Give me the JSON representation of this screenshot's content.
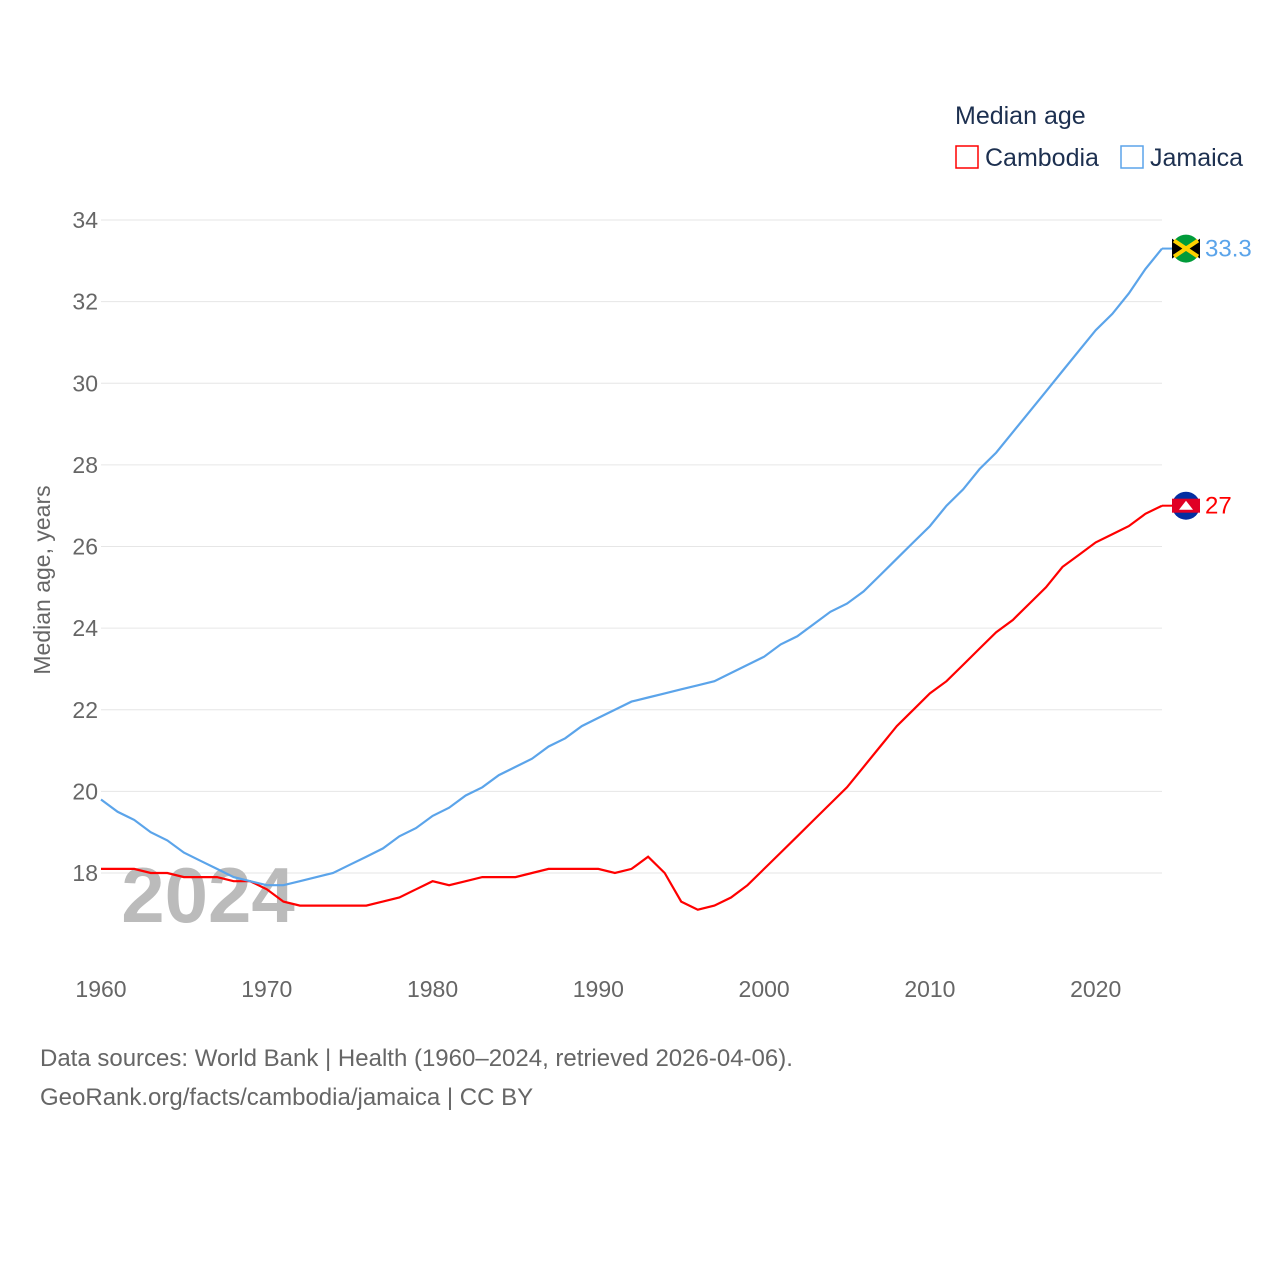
{
  "chart_data": {
    "type": "line",
    "title": "",
    "legend_title": "Median age",
    "legend_placement": "top-right",
    "ylabel": "Median age, years",
    "xlabel": "",
    "ylim": [
      16,
      34
    ],
    "xlim": [
      1960,
      2024
    ],
    "yticks": [
      18,
      20,
      22,
      24,
      26,
      28,
      30,
      32,
      34
    ],
    "xticks": [
      1960,
      1970,
      1980,
      1990,
      2000,
      2010,
      2020
    ],
    "grid": true,
    "year_overlay": "2024",
    "x": [
      1960,
      1961,
      1962,
      1963,
      1964,
      1965,
      1966,
      1967,
      1968,
      1969,
      1970,
      1971,
      1972,
      1973,
      1974,
      1975,
      1976,
      1977,
      1978,
      1979,
      1980,
      1981,
      1982,
      1983,
      1984,
      1985,
      1986,
      1987,
      1988,
      1989,
      1990,
      1991,
      1992,
      1993,
      1994,
      1995,
      1996,
      1997,
      1998,
      1999,
      2000,
      2001,
      2002,
      2003,
      2004,
      2005,
      2006,
      2007,
      2008,
      2009,
      2010,
      2011,
      2012,
      2013,
      2014,
      2015,
      2016,
      2017,
      2018,
      2019,
      2020,
      2021,
      2022,
      2023,
      2024
    ],
    "series": [
      {
        "name": "Cambodia",
        "color": "#ff0000",
        "end_label": "27",
        "values": [
          18.1,
          18.1,
          18.1,
          18.0,
          18.0,
          17.9,
          17.9,
          17.9,
          17.8,
          17.8,
          17.6,
          17.3,
          17.2,
          17.2,
          17.2,
          17.2,
          17.2,
          17.3,
          17.4,
          17.6,
          17.8,
          17.7,
          17.8,
          17.9,
          17.9,
          17.9,
          18.0,
          18.1,
          18.1,
          18.1,
          18.1,
          18.0,
          18.1,
          18.4,
          18.0,
          17.3,
          17.1,
          17.2,
          17.4,
          17.7,
          18.1,
          18.5,
          18.9,
          19.3,
          19.7,
          20.1,
          20.6,
          21.1,
          21.6,
          22.0,
          22.4,
          22.7,
          23.1,
          23.5,
          23.9,
          24.2,
          24.6,
          25.0,
          25.5,
          25.8,
          26.1,
          26.3,
          26.5,
          26.8,
          27.0
        ]
      },
      {
        "name": "Jamaica",
        "color": "#5ba4ea",
        "end_label": "33.3",
        "values": [
          19.8,
          19.5,
          19.3,
          19.0,
          18.8,
          18.5,
          18.3,
          18.1,
          17.9,
          17.8,
          17.7,
          17.7,
          17.8,
          17.9,
          18.0,
          18.2,
          18.4,
          18.6,
          18.9,
          19.1,
          19.4,
          19.6,
          19.9,
          20.1,
          20.4,
          20.6,
          20.8,
          21.1,
          21.3,
          21.6,
          21.8,
          22.0,
          22.2,
          22.3,
          22.4,
          22.5,
          22.6,
          22.7,
          22.9,
          23.1,
          23.3,
          23.6,
          23.8,
          24.1,
          24.4,
          24.6,
          24.9,
          25.3,
          25.7,
          26.1,
          26.5,
          27.0,
          27.4,
          27.9,
          28.3,
          28.8,
          29.3,
          29.8,
          30.3,
          30.8,
          31.3,
          31.7,
          32.2,
          32.8,
          33.3
        ]
      }
    ]
  },
  "footer": {
    "line1": "Data sources: World Bank | Health (1960–2024, retrieved 2026-04-06).",
    "line2": "GeoRank.org/facts/cambodia/jamaica | CC BY"
  }
}
